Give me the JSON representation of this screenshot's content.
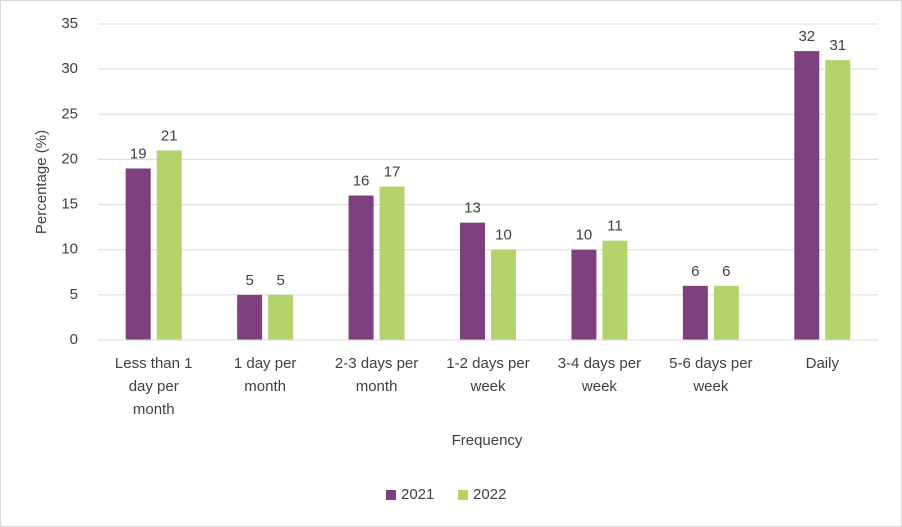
{
  "chart_data": {
    "type": "bar",
    "x_label": "Frequency",
    "y_label": "Percentage (%)",
    "categories": [
      "Less than 1 day per month",
      "1 day per month",
      "2-3 days per month",
      "1-2 days per week",
      "3-4 days per week",
      "5-6 days per week",
      "Daily"
    ],
    "series": [
      {
        "name": "2021",
        "color": "#7d3f7e",
        "values": [
          19,
          5,
          16,
          13,
          10,
          6,
          32
        ]
      },
      {
        "name": "2022",
        "color": "#b3d46b",
        "values": [
          21,
          5,
          17,
          10,
          11,
          6,
          31
        ]
      }
    ],
    "ylim": [
      0,
      35
    ],
    "yticks": [
      0,
      5,
      10,
      15,
      20,
      25,
      30,
      35
    ],
    "grid": true,
    "legend": "bottom"
  }
}
